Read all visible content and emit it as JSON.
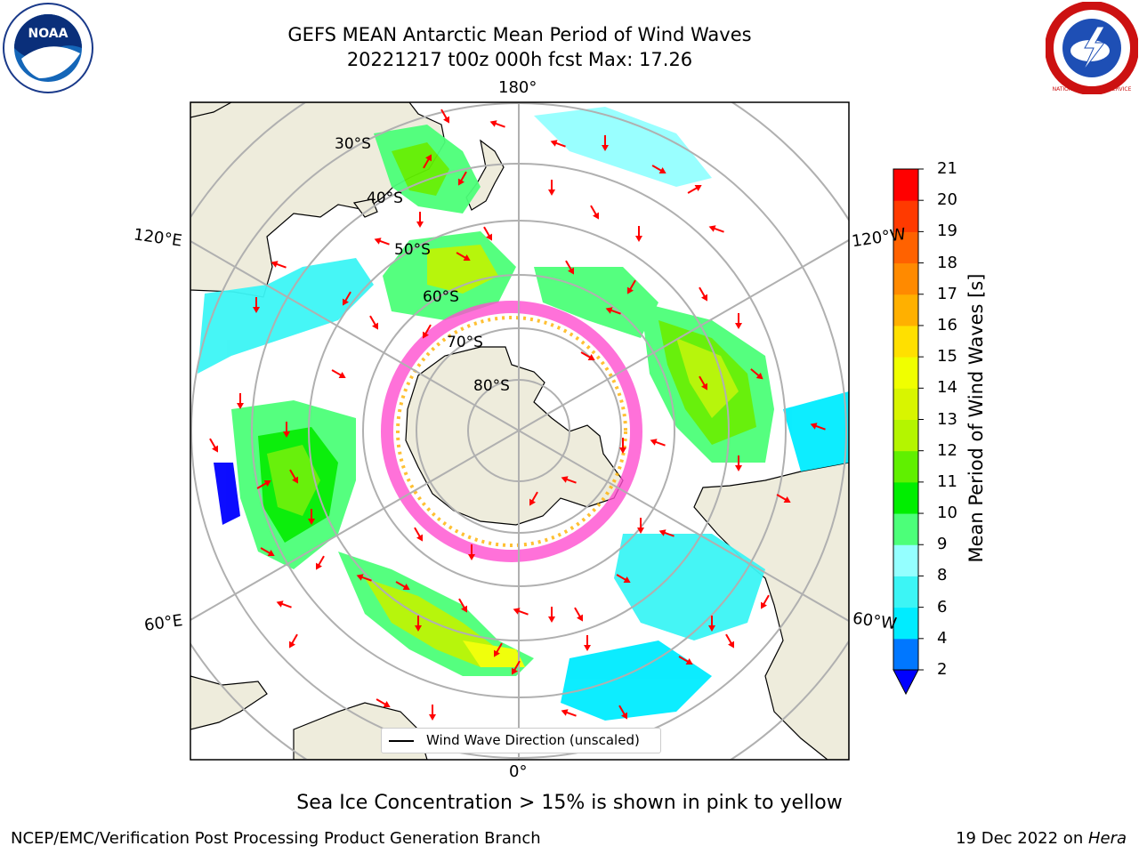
{
  "title": {
    "line1": "GEFS MEAN Antarctic Mean Period of Wind Waves",
    "line2": "20221217 t00z 000h fcst   Max: 17.26"
  },
  "logos": {
    "left": "noaa-logo",
    "right": "nws-logo",
    "left_text": "NOAA",
    "right_text": "NATIONAL WEATHER SERVICE"
  },
  "map": {
    "projection": "south-polar-stereographic",
    "lon_labels": {
      "top": "180°",
      "bottom": "0°",
      "left_upper": "120°E",
      "left_lower": "60°E",
      "right_upper": "120°W",
      "right_lower": "60°W"
    },
    "lat_labels": [
      "30°S",
      "40°S",
      "50°S",
      "60°S",
      "70°S",
      "80°S"
    ],
    "legend": "Wind Wave Direction (unscaled)",
    "colors": {
      "land": "#eeecdc",
      "ice_pink": "#ff4dd0",
      "arrow": "#ff0000",
      "grid": "#b0b0b0"
    }
  },
  "colorbar": {
    "label": "Mean Period of Wind Waves [s]",
    "ticks": [
      "2",
      "4",
      "6",
      "8",
      "9",
      "10",
      "11",
      "12",
      "13",
      "14",
      "15",
      "16",
      "17",
      "18",
      "19",
      "20",
      "21"
    ],
    "colors": [
      "#0000ff",
      "#0077ff",
      "#00ecff",
      "#3cf5f5",
      "#94ffff",
      "#4cff79",
      "#00ee00",
      "#60f000",
      "#b4f500",
      "#d8f500",
      "#f0ff00",
      "#ffe000",
      "#ffb000",
      "#ff8a00",
      "#ff6200",
      "#ff3a00",
      "#ff0000"
    ]
  },
  "footer": {
    "note": "Sea Ice Concentration > 15% is shown in pink to yellow",
    "left": "NCEP/EMC/Verification Post Processing Product Generation Branch",
    "right_prefix": "19 Dec 2022 on ",
    "right_machine": "Hera"
  }
}
